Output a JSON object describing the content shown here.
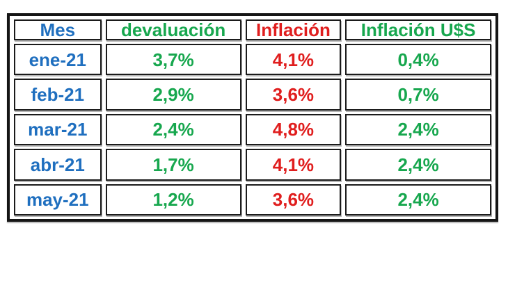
{
  "chart_data": {
    "type": "table",
    "columns": [
      "Mes",
      "devaluación",
      "Inflación",
      "Inflación U$S"
    ],
    "rows": [
      [
        "ene-21",
        "3,7%",
        "4,1%",
        "0,4%"
      ],
      [
        "feb-21",
        "2,9%",
        "3,6%",
        "0,7%"
      ],
      [
        "mar-21",
        "2,4%",
        "4,8%",
        "2,4%"
      ],
      [
        "abr-21",
        "1,7%",
        "4,1%",
        "2,4%"
      ],
      [
        "may-21",
        "1,2%",
        "3,6%",
        "2,4%"
      ]
    ],
    "column_colors": {
      "mes": "#1f6fbf",
      "devaluacion": "#17a74e",
      "inflacion": "#e01e1e",
      "inflacion_uss": "#17a74e"
    },
    "layout_hints": {
      "style": "excel-like bordered table on white background",
      "outer_border": "#151515",
      "cell_background": "#ffffff"
    }
  }
}
